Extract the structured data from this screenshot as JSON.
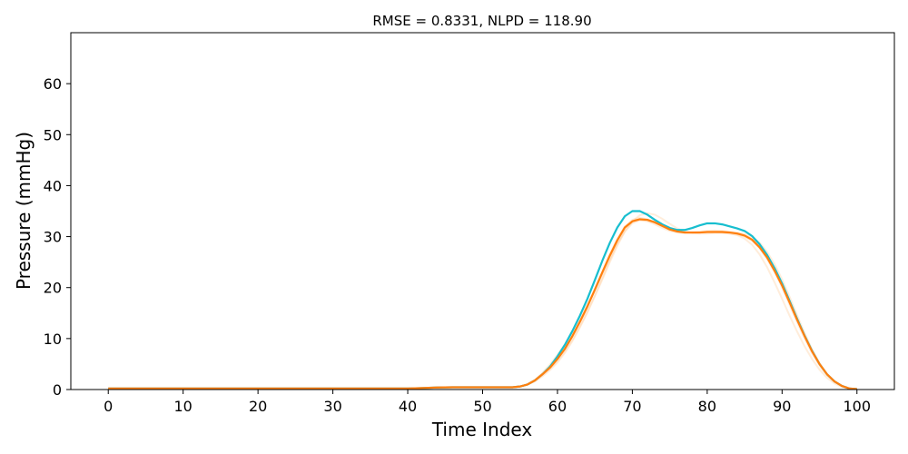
{
  "chart_data": {
    "type": "line",
    "title": "RMSE = 0.8331, NLPD = 118.90",
    "xlabel": "Time Index",
    "ylabel": "Pressure (mmHg)",
    "xlim": [
      -5,
      105
    ],
    "ylim": [
      0,
      70
    ],
    "x_ticks": [
      0,
      10,
      20,
      30,
      40,
      50,
      60,
      70,
      80,
      90,
      100
    ],
    "y_ticks": [
      0,
      10,
      20,
      30,
      40,
      50,
      60
    ],
    "grid": false,
    "colors": {
      "true_signal": "#17becf",
      "prediction_mean": "#ff7f0e",
      "samples": "#ffcc99"
    },
    "x": [
      0,
      5,
      10,
      15,
      20,
      25,
      30,
      35,
      40,
      42,
      44,
      46,
      48,
      50,
      52,
      54,
      55,
      56,
      57,
      58,
      59,
      60,
      61,
      62,
      63,
      64,
      65,
      66,
      67,
      68,
      69,
      70,
      71,
      72,
      73,
      74,
      75,
      76,
      77,
      78,
      79,
      80,
      81,
      82,
      83,
      84,
      85,
      86,
      87,
      88,
      89,
      90,
      91,
      92,
      93,
      94,
      95,
      96,
      97,
      98,
      99,
      100
    ],
    "series": [
      {
        "key": "true_signal",
        "values": [
          0.2,
          0.2,
          0.2,
          0.2,
          0.2,
          0.2,
          0.2,
          0.2,
          0.2,
          0.3,
          0.4,
          0.45,
          0.45,
          0.45,
          0.45,
          0.45,
          0.6,
          1.0,
          1.8,
          3.0,
          4.5,
          6.5,
          8.8,
          11.5,
          14.5,
          17.8,
          21.5,
          25.3,
          28.8,
          31.8,
          34.0,
          35.0,
          35.0,
          34.3,
          33.3,
          32.4,
          31.7,
          31.3,
          31.3,
          31.7,
          32.2,
          32.6,
          32.6,
          32.4,
          32.0,
          31.6,
          31.1,
          30.1,
          28.5,
          26.4,
          23.8,
          20.8,
          17.4,
          13.9,
          10.6,
          7.6,
          5.0,
          3.0,
          1.6,
          0.7,
          0.2,
          0.1
        ]
      },
      {
        "key": "prediction_mean",
        "values": [
          0.2,
          0.2,
          0.2,
          0.2,
          0.2,
          0.2,
          0.2,
          0.2,
          0.2,
          0.3,
          0.4,
          0.45,
          0.45,
          0.45,
          0.45,
          0.45,
          0.6,
          1.0,
          1.8,
          3.0,
          4.3,
          6.0,
          8.0,
          10.5,
          13.3,
          16.3,
          19.6,
          23.0,
          26.3,
          29.3,
          31.8,
          33.0,
          33.4,
          33.3,
          32.8,
          32.1,
          31.4,
          31.0,
          30.8,
          30.8,
          30.8,
          30.9,
          30.9,
          30.9,
          30.8,
          30.6,
          30.2,
          29.4,
          27.9,
          25.9,
          23.3,
          20.4,
          17.1,
          13.7,
          10.5,
          7.5,
          5.0,
          3.0,
          1.6,
          0.7,
          0.2,
          0.1
        ]
      }
    ],
    "samples": [
      {
        "values": [
          0.2,
          0.2,
          0.2,
          0.2,
          0.2,
          0.2,
          0.2,
          0.2,
          0.2,
          0.3,
          0.4,
          0.45,
          0.45,
          0.45,
          0.45,
          0.45,
          0.6,
          1.0,
          1.6,
          2.6,
          3.8,
          5.3,
          7.2,
          9.5,
          12.2,
          15.1,
          18.3,
          21.6,
          25.0,
          28.2,
          31.0,
          33.0,
          34.2,
          34.6,
          34.3,
          33.5,
          32.5,
          31.6,
          31.0,
          30.7,
          30.6,
          30.6,
          30.7,
          30.7,
          30.6,
          30.4,
          30.0,
          29.2,
          27.8,
          25.8,
          23.3,
          20.4,
          17.1,
          13.7,
          10.5,
          7.5,
          5.0,
          3.0,
          1.6,
          0.7,
          0.2,
          0.1
        ]
      },
      {
        "values": [
          0.2,
          0.2,
          0.2,
          0.2,
          0.2,
          0.2,
          0.2,
          0.2,
          0.2,
          0.3,
          0.4,
          0.45,
          0.45,
          0.45,
          0.45,
          0.45,
          0.6,
          1.0,
          1.9,
          3.3,
          4.9,
          6.8,
          8.9,
          11.3,
          13.9,
          16.6,
          19.5,
          22.6,
          25.7,
          28.6,
          31.0,
          32.6,
          33.2,
          33.1,
          32.7,
          32.1,
          31.5,
          31.1,
          30.9,
          30.9,
          31.0,
          31.1,
          31.2,
          31.1,
          30.9,
          30.6,
          30.1,
          29.2,
          27.7,
          25.6,
          23.0,
          20.0,
          16.6,
          13.2,
          10.0,
          7.1,
          4.7,
          2.8,
          1.5,
          0.6,
          0.2,
          0.1
        ]
      },
      {
        "values": [
          0.2,
          0.2,
          0.2,
          0.2,
          0.2,
          0.2,
          0.2,
          0.2,
          0.2,
          0.3,
          0.4,
          0.45,
          0.45,
          0.45,
          0.45,
          0.45,
          0.6,
          1.0,
          1.8,
          2.9,
          4.1,
          5.6,
          7.5,
          9.8,
          12.4,
          15.3,
          18.5,
          21.9,
          25.4,
          28.7,
          31.4,
          32.9,
          33.3,
          33.0,
          32.4,
          31.7,
          31.1,
          30.8,
          30.7,
          30.7,
          30.8,
          30.9,
          30.9,
          30.8,
          30.6,
          30.3,
          29.6,
          28.4,
          26.5,
          24.0,
          21.0,
          17.8,
          14.5,
          11.4,
          8.5,
          6.0,
          3.9,
          2.3,
          1.2,
          0.5,
          0.2,
          0.1
        ]
      },
      {
        "values": [
          0.2,
          0.2,
          0.2,
          0.2,
          0.2,
          0.2,
          0.2,
          0.2,
          0.2,
          0.3,
          0.4,
          0.45,
          0.45,
          0.45,
          0.45,
          0.45,
          0.6,
          1.0,
          1.7,
          2.8,
          4.2,
          6.0,
          8.1,
          10.6,
          13.4,
          16.4,
          19.8,
          23.2,
          26.6,
          29.6,
          32.0,
          33.3,
          33.7,
          33.4,
          32.8,
          32.0,
          31.3,
          30.9,
          30.7,
          30.7,
          30.8,
          30.9,
          31.0,
          31.0,
          30.9,
          30.8,
          30.5,
          29.9,
          28.8,
          27.0,
          24.6,
          21.6,
          18.2,
          14.6,
          11.1,
          7.9,
          5.2,
          3.1,
          1.6,
          0.7,
          0.2,
          0.1
        ]
      }
    ]
  }
}
